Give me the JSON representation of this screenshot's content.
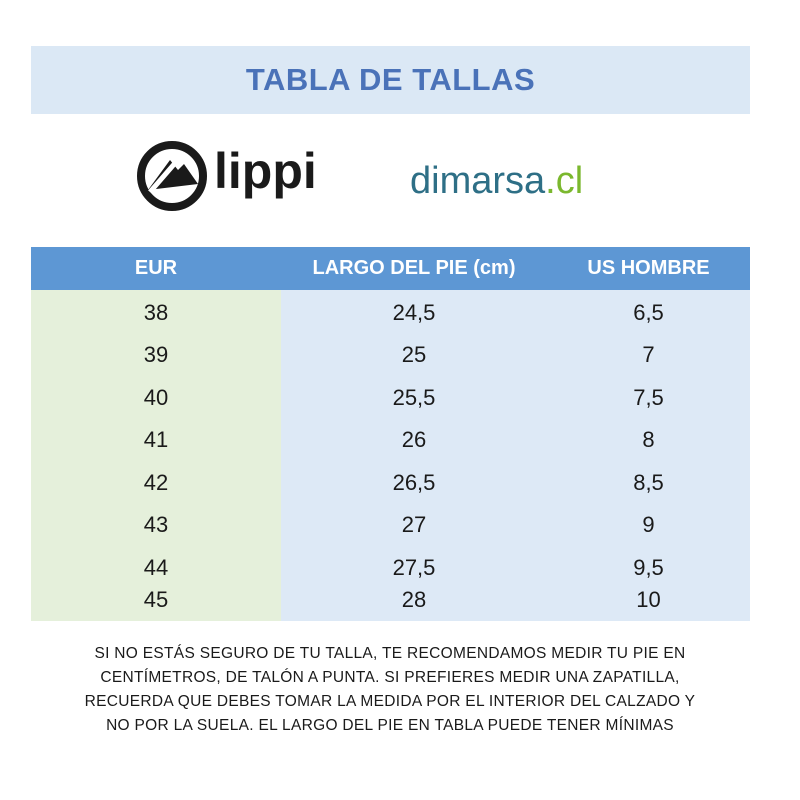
{
  "title": "TABLA DE TALLAS",
  "logos": {
    "lippi": "lippi",
    "dimarsa_main": "dimarsa",
    "dimarsa_suffix": ".cl"
  },
  "table": {
    "headers": [
      "EUR",
      "LARGO DEL PIE (cm)",
      "US HOMBRE"
    ],
    "rows": [
      [
        "38",
        "24,5",
        "6,5"
      ],
      [
        "39",
        "25",
        "7"
      ],
      [
        "40",
        "25,5",
        "7,5"
      ],
      [
        "41",
        "26",
        "8"
      ],
      [
        "42",
        "26,5",
        "8,5"
      ],
      [
        "43",
        "27",
        "9"
      ],
      [
        "44",
        "27,5",
        "9,5"
      ],
      [
        "45",
        "28",
        "10"
      ]
    ]
  },
  "note": [
    "SI NO ESTÁS SEGURO DE TU TALLA, TE RECOMENDAMOS MEDIR TU PIE EN",
    "CENTÍMETROS, DE TALÓN A PUNTA. SI PREFIERES MEDIR UNA ZAPATILLA,",
    "RECUERDA QUE DEBES TOMAR LA MEDIDA POR EL INTERIOR DEL CALZADO Y",
    "NO POR LA SUELA. EL LARGO DEL PIE EN TABLA PUEDE TENER MÍNIMAS"
  ],
  "colors": {
    "title_band": "#dbe8f5",
    "title_text": "#4a72b8",
    "header_bg": "#5d97d4",
    "eur_col_bg": "#e5f0db",
    "data_col_bg": "#dde9f6",
    "dimarsa_blue": "#2e6f86",
    "dimarsa_green": "#7bb82e"
  }
}
